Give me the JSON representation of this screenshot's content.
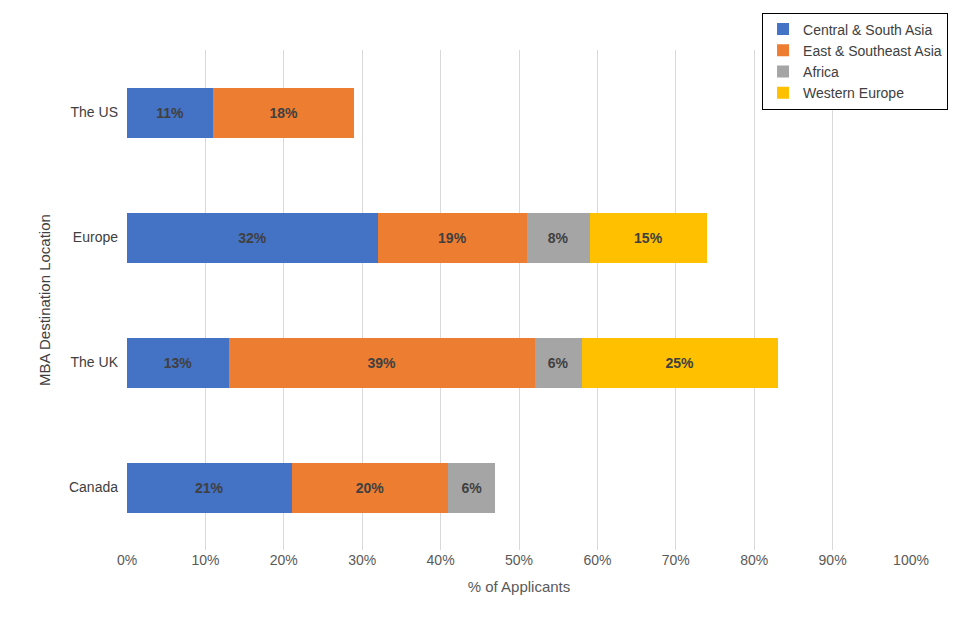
{
  "chart_data": {
    "type": "bar",
    "orientation": "horizontal",
    "stacked": true,
    "data_labels": true,
    "grid": true,
    "legend": "top-right",
    "xlabel": "% of Applicants",
    "ylabel": "MBA Destination Location",
    "categories": [
      "The US",
      "Europe",
      "The UK",
      "Canada"
    ],
    "series": [
      {
        "name": "Central & South Asia",
        "color": "#4472c4",
        "values": [
          11,
          32,
          13,
          21
        ],
        "value_labels": [
          "11%",
          "32%",
          "13%",
          "21%"
        ]
      },
      {
        "name": "East & Southeast Asia",
        "color": "#ed7d31",
        "values": [
          18,
          19,
          39,
          20
        ],
        "value_labels": [
          "18%",
          "19%",
          "39%",
          "20%"
        ]
      },
      {
        "name": "Africa",
        "color": "#a5a5a5",
        "values": [
          null,
          8,
          6,
          6
        ],
        "value_labels": [
          null,
          "8%",
          "6%",
          "6%"
        ]
      },
      {
        "name": "Western Europe",
        "color": "#ffc000",
        "values": [
          null,
          15,
          25,
          null
        ],
        "value_labels": [
          null,
          "15%",
          "25%",
          null
        ]
      }
    ],
    "xlim": [
      0,
      100
    ],
    "xticks": [
      {
        "value": 0,
        "label": "0%"
      },
      {
        "value": 10,
        "label": "10%"
      },
      {
        "value": 20,
        "label": "20%"
      },
      {
        "value": 30,
        "label": "30%"
      },
      {
        "value": 40,
        "label": "40%"
      },
      {
        "value": 50,
        "label": "50%"
      },
      {
        "value": 60,
        "label": "60%"
      },
      {
        "value": 70,
        "label": "70%"
      },
      {
        "value": 80,
        "label": "80%"
      },
      {
        "value": 90,
        "label": "90%"
      },
      {
        "value": 100,
        "label": "100%"
      }
    ]
  }
}
